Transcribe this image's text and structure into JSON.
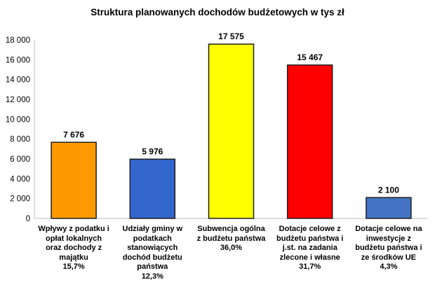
{
  "chart_data": {
    "type": "bar",
    "title": "Struktura planowanych dochodów  budżetowych w tys zł",
    "xlabel": "",
    "ylabel": "",
    "ylim": [
      0,
      18000
    ],
    "yticks": [
      0,
      2000,
      4000,
      6000,
      8000,
      10000,
      12000,
      14000,
      16000,
      18000
    ],
    "ytick_labels": [
      "0",
      "2 000",
      "4 000",
      "6 000",
      "8 000",
      "10 000",
      "12 000",
      "14 000",
      "16 000",
      "18 000"
    ],
    "grid": false,
    "legend": "none",
    "categories": [
      "Wpływy z podatku i\nopłat lokalnych\noraz dochody z\nmajątku\n15,7%",
      "Udziały gminy w\npodatkach\nstanowiących\ndochód budżetu\npaństwa\n12,3%",
      "Subwencja ogólna\nz budżetu państwa\n36,0%",
      "Dotacje celowe z\nbudżetu państwa i\nj.st. na zadania\nzlecone i własne\n31,7%",
      "Dotacje celowe na\ninwestycje z\nbudżetu państwa i\nze środków UE\n4,3%"
    ],
    "values": [
      7676,
      5976,
      17575,
      15467,
      2100
    ],
    "value_labels": [
      "7 676",
      "5 976",
      "17 575",
      "15 467",
      "2 100"
    ],
    "colors": [
      "#FF9900",
      "#3366CC",
      "#FFFF00",
      "#FF0000",
      "#4472C4"
    ]
  }
}
